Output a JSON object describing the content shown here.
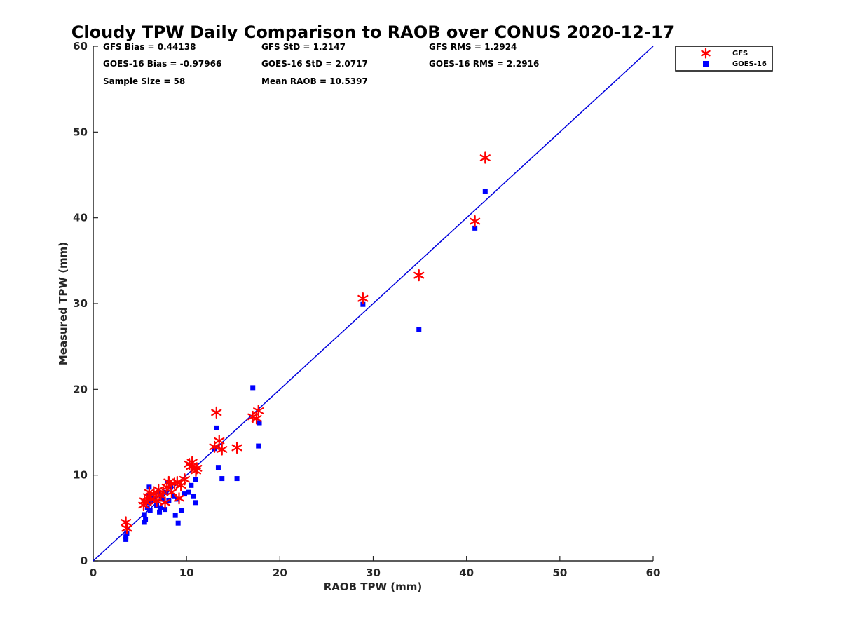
{
  "chart_data": {
    "type": "scatter",
    "title": "Cloudy TPW Daily Comparison to RAOB over CONUS 2020-12-17",
    "xlabel": "RAOB TPW (mm)",
    "ylabel": "Measured TPW (mm)",
    "xlim": [
      0,
      60
    ],
    "ylim": [
      0,
      60
    ],
    "xticks": [
      "0",
      "10",
      "20",
      "30",
      "40",
      "50",
      "60"
    ],
    "yticks": [
      "0",
      "10",
      "20",
      "30",
      "40",
      "50",
      "60"
    ],
    "grid": false,
    "legend_position": "outside-top-right",
    "stats": {
      "gfs_bias": "GFS Bias = 0.44138",
      "gfs_std": "GFS StD = 1.2147",
      "gfs_rms": "GFS RMS = 1.2924",
      "goes_bias": "GOES-16 Bias = -0.97966",
      "goes_std": "GOES-16 StD = 2.0717",
      "goes_rms": "GOES-16 RMS = 2.2916",
      "sample_size": "Sample Size = 58",
      "mean_raob": "Mean RAOB = 10.5397"
    },
    "reference_line": {
      "from": [
        0,
        0
      ],
      "to": [
        60,
        60
      ],
      "color": "#0000dd"
    },
    "series": [
      {
        "name": "GFS",
        "marker": "asterisk",
        "color": "#ff0000",
        "points": [
          [
            3.5,
            4.5
          ],
          [
            3.6,
            3.8
          ],
          [
            5.4,
            6.5
          ],
          [
            5.5,
            7.0
          ],
          [
            5.7,
            6.8
          ],
          [
            5.9,
            7.5
          ],
          [
            6.0,
            8.0
          ],
          [
            6.2,
            7.2
          ],
          [
            6.5,
            7.8
          ],
          [
            6.8,
            7.0
          ],
          [
            7.0,
            8.3
          ],
          [
            7.2,
            7.6
          ],
          [
            7.5,
            8.0
          ],
          [
            7.7,
            6.8
          ],
          [
            7.9,
            8.6
          ],
          [
            8.1,
            9.2
          ],
          [
            8.4,
            8.0
          ],
          [
            8.7,
            9.0
          ],
          [
            9.0,
            9.2
          ],
          [
            9.2,
            7.3
          ],
          [
            9.4,
            8.8
          ],
          [
            9.8,
            9.5
          ],
          [
            10.3,
            11.3
          ],
          [
            10.5,
            11.0
          ],
          [
            10.6,
            11.5
          ],
          [
            11.0,
            10.5
          ],
          [
            11.1,
            10.8
          ],
          [
            13.0,
            13.3
          ],
          [
            13.2,
            17.3
          ],
          [
            13.5,
            14.0
          ],
          [
            13.8,
            13.0
          ],
          [
            15.4,
            13.2
          ],
          [
            17.1,
            16.8
          ],
          [
            17.5,
            16.6
          ],
          [
            17.7,
            17.5
          ],
          [
            28.9,
            30.6
          ],
          [
            34.9,
            33.3
          ],
          [
            40.9,
            39.6
          ],
          [
            42.0,
            47.0
          ]
        ]
      },
      {
        "name": "GOES-16",
        "marker": "square",
        "color": "#0000ff",
        "points": [
          [
            3.5,
            2.5
          ],
          [
            3.5,
            2.8
          ],
          [
            3.6,
            3.2
          ],
          [
            5.5,
            4.5
          ],
          [
            5.5,
            5.4
          ],
          [
            5.6,
            4.8
          ],
          [
            5.8,
            6.2
          ],
          [
            5.9,
            6.8
          ],
          [
            6.0,
            8.6
          ],
          [
            6.0,
            7.6
          ],
          [
            6.1,
            5.9
          ],
          [
            6.2,
            7.0
          ],
          [
            6.5,
            7.3
          ],
          [
            6.8,
            6.5
          ],
          [
            7.0,
            8.0
          ],
          [
            7.1,
            5.7
          ],
          [
            7.2,
            6.2
          ],
          [
            7.3,
            7.5
          ],
          [
            7.5,
            7.2
          ],
          [
            7.7,
            6.0
          ],
          [
            7.8,
            8.0
          ],
          [
            8.0,
            9.2
          ],
          [
            8.1,
            7.0
          ],
          [
            8.3,
            8.6
          ],
          [
            8.7,
            7.5
          ],
          [
            8.8,
            5.3
          ],
          [
            9.0,
            7.2
          ],
          [
            9.1,
            4.4
          ],
          [
            9.5,
            5.9
          ],
          [
            9.8,
            7.8
          ],
          [
            10.2,
            8.0
          ],
          [
            10.5,
            8.8
          ],
          [
            10.7,
            7.5
          ],
          [
            11.0,
            6.8
          ],
          [
            11.0,
            9.5
          ],
          [
            13.0,
            13.1
          ],
          [
            13.2,
            15.5
          ],
          [
            13.4,
            10.9
          ],
          [
            13.8,
            9.6
          ],
          [
            15.4,
            9.6
          ],
          [
            17.1,
            20.2
          ],
          [
            17.7,
            13.4
          ],
          [
            17.8,
            16.1
          ],
          [
            28.9,
            29.9
          ],
          [
            34.9,
            27.0
          ],
          [
            40.9,
            38.8
          ],
          [
            42.0,
            43.1
          ]
        ]
      }
    ]
  }
}
